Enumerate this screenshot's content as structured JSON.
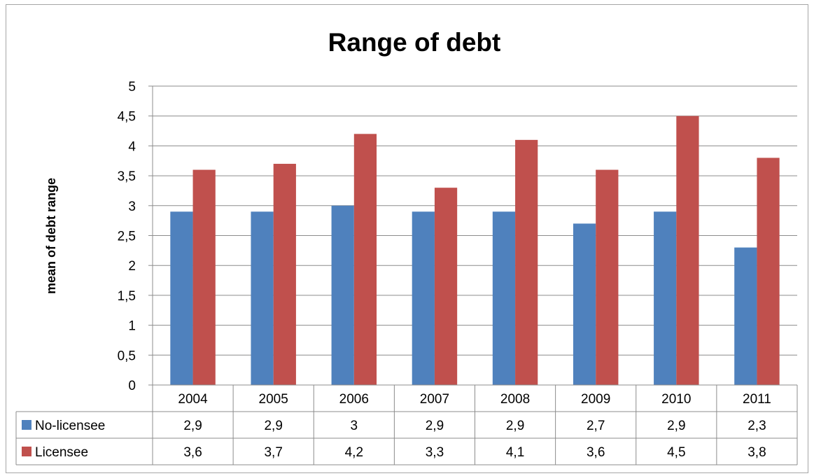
{
  "chart_data": {
    "type": "bar",
    "title": "Range of debt",
    "xlabel": "",
    "ylabel": "mean of debt range",
    "categories": [
      "2004",
      "2005",
      "2006",
      "2007",
      "2008",
      "2009",
      "2010",
      "2011"
    ],
    "ylim": [
      0,
      5
    ],
    "yticks": [
      "0",
      "0,5",
      "1",
      "1,5",
      "2",
      "2,5",
      "3",
      "3,5",
      "4",
      "4,5",
      "5"
    ],
    "grid": true,
    "legend": "data-table",
    "series": [
      {
        "name": "No-licensee",
        "color": "#4f81bd",
        "values": [
          2.9,
          2.9,
          3.0,
          2.9,
          2.9,
          2.7,
          2.9,
          2.3
        ],
        "labels": [
          "2,9",
          "2,9",
          "3",
          "2,9",
          "2,9",
          "2,7",
          "2,9",
          "2,3"
        ]
      },
      {
        "name": "Licensee",
        "color": "#c0504d",
        "values": [
          3.6,
          3.7,
          4.2,
          3.3,
          4.1,
          3.6,
          4.5,
          3.8
        ],
        "labels": [
          "3,6",
          "3,7",
          "4,2",
          "3,3",
          "4,1",
          "3,6",
          "4,5",
          "3,8"
        ]
      }
    ]
  }
}
